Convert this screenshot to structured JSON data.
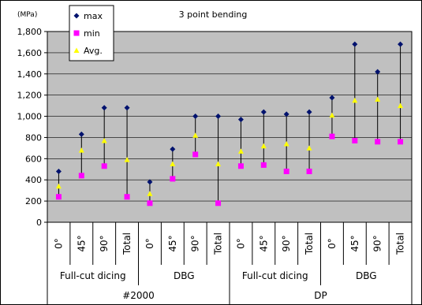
{
  "chart_data": {
    "type": "scatter",
    "title": "3 point bending",
    "ylabel": "(MPa)",
    "ylim": [
      0,
      1800
    ],
    "yticks": [
      0,
      200,
      400,
      600,
      800,
      1000,
      1200,
      1400,
      1600,
      1800
    ],
    "ytick_labels": [
      "0",
      "200",
      "400",
      "600",
      "800",
      "1,000",
      "1,200",
      "1,400",
      "1,600",
      "1,800"
    ],
    "grid": true,
    "legend_position": "top-left",
    "categories": [
      "0°",
      "45°",
      "90°",
      "Total",
      "0°",
      "45°",
      "90°",
      "Total",
      "0°",
      "45°",
      "90°",
      "Total",
      "0°",
      "45°",
      "90°",
      "Total"
    ],
    "groups_level1": [
      {
        "label": "Full-cut dicing",
        "span": 4
      },
      {
        "label": "DBG",
        "span": 4
      },
      {
        "label": "Full-cut dicing",
        "span": 4
      },
      {
        "label": "DBG",
        "span": 4
      }
    ],
    "groups_level2": [
      {
        "label": "#2000",
        "span": 8
      },
      {
        "label": "DP",
        "span": 8
      }
    ],
    "series": [
      {
        "name": "max",
        "color": "#00126e",
        "marker": "diamond",
        "values": [
          480,
          830,
          1080,
          1080,
          380,
          690,
          1000,
          1000,
          970,
          1040,
          1020,
          1040,
          1175,
          1680,
          1420,
          1680
        ]
      },
      {
        "name": "min",
        "color": "#ff00ff",
        "marker": "square",
        "values": [
          240,
          440,
          530,
          240,
          180,
          410,
          640,
          180,
          530,
          540,
          480,
          480,
          810,
          770,
          760,
          760
        ]
      },
      {
        "name": "Avg.",
        "color": "#ffff00",
        "marker": "triangle",
        "values": [
          340,
          680,
          770,
          590,
          270,
          550,
          820,
          550,
          670,
          720,
          740,
          700,
          1010,
          1150,
          1160,
          1100
        ]
      }
    ]
  }
}
